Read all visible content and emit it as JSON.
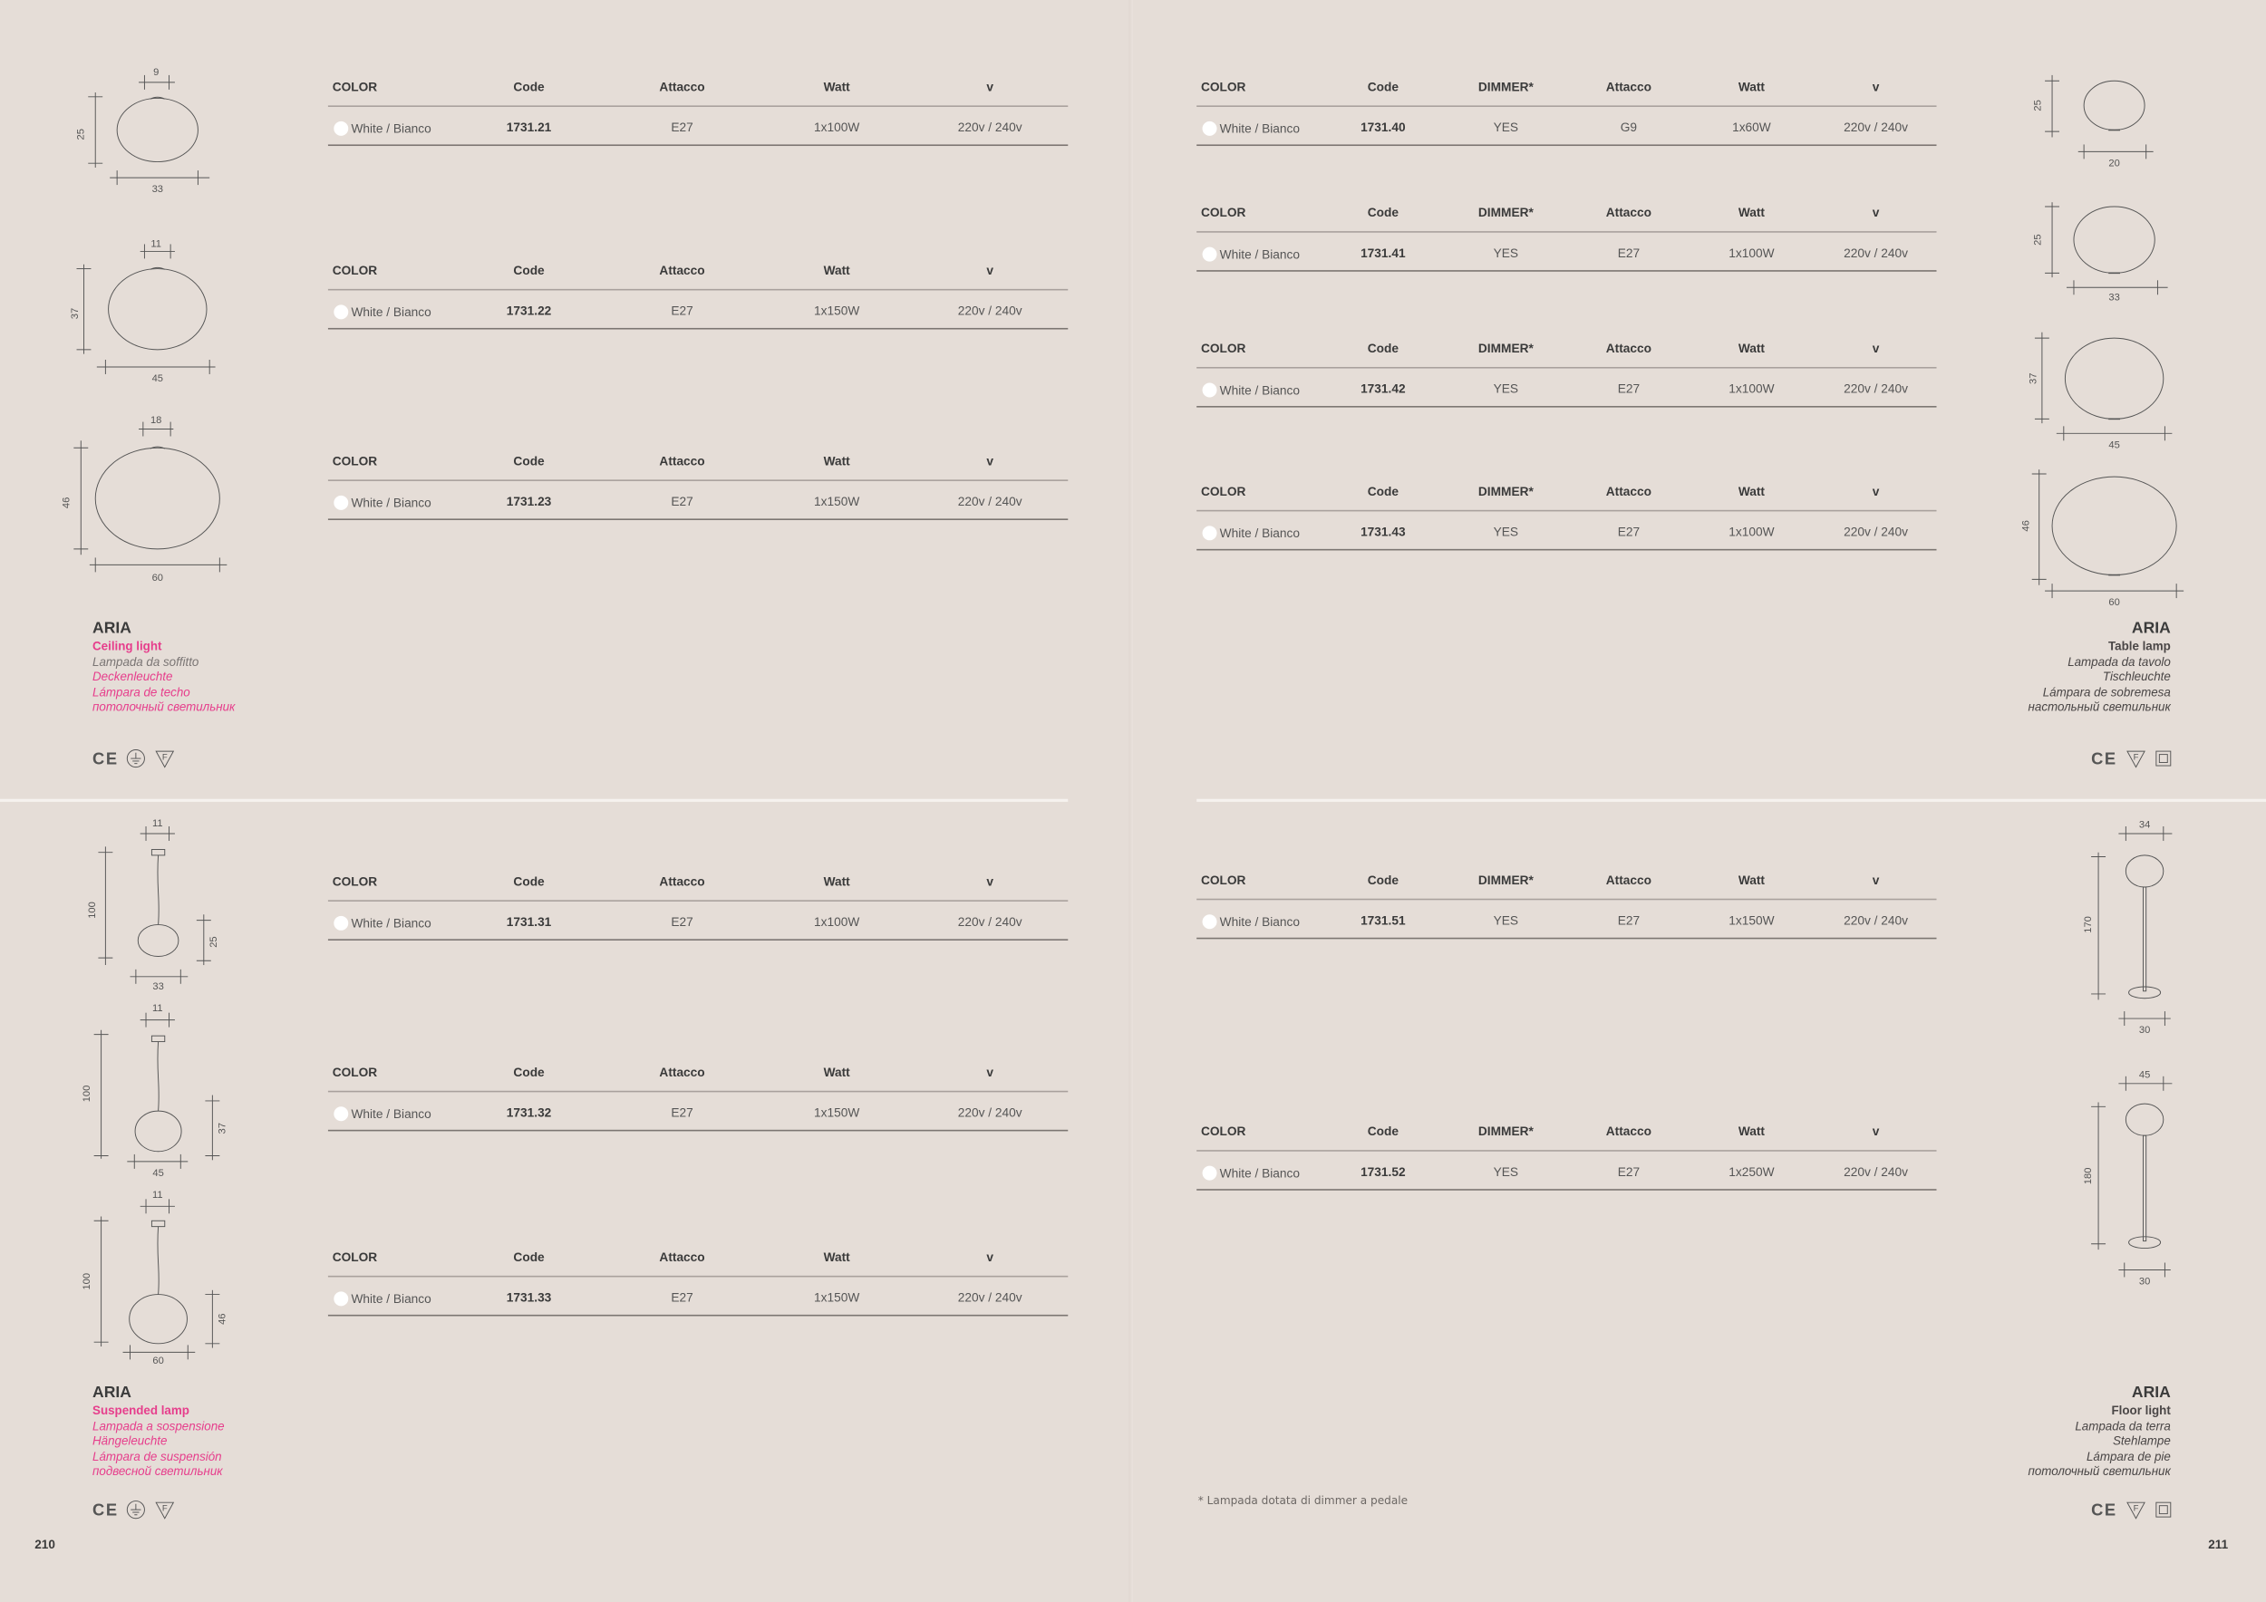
{
  "left_page": {
    "page_number": "210",
    "ceiling": {
      "name": "ARIA",
      "subtitle": "Ceiling light",
      "lines": [
        "Lampada da soffitto",
        "Deckenleuchte",
        "Lámpara de techo",
        "потолочный светильник"
      ],
      "cert_icons": [
        "ce-mark-icon",
        "earth-ground-icon",
        "f-triangle-icon"
      ],
      "tables": [
        {
          "headers": [
            "COLOR",
            "Code",
            "Attacco",
            "Watt",
            "v"
          ],
          "row": {
            "color": "White / Bianco",
            "code": "1731.21",
            "attacco": "E27",
            "watt": "1x100W",
            "v": "220v / 240v"
          }
        },
        {
          "headers": [
            "COLOR",
            "Code",
            "Attacco",
            "Watt",
            "v"
          ],
          "row": {
            "color": "White / Bianco",
            "code": "1731.22",
            "attacco": "E27",
            "watt": "1x150W",
            "v": "220v / 240v"
          }
        },
        {
          "headers": [
            "COLOR",
            "Code",
            "Attacco",
            "Watt",
            "v"
          ],
          "row": {
            "color": "White / Bianco",
            "code": "1731.23",
            "attacco": "E27",
            "watt": "1x150W",
            "v": "220v / 240v"
          }
        }
      ],
      "drawings": [
        {
          "top": "9",
          "height": "25",
          "width": "33"
        },
        {
          "top": "11",
          "height": "37",
          "width": "45"
        },
        {
          "top": "18",
          "height": "46",
          "width": "60"
        }
      ]
    },
    "suspended": {
      "name": "ARIA",
      "subtitle": "Suspended lamp",
      "lines": [
        "Lampada a sospensione",
        "Hängeleuchte",
        "Lámpara de suspensión",
        "подвесной светильник"
      ],
      "cert_icons": [
        "ce-mark-icon",
        "earth-ground-icon",
        "f-triangle-icon"
      ],
      "tables": [
        {
          "headers": [
            "COLOR",
            "Code",
            "Attacco",
            "Watt",
            "v"
          ],
          "row": {
            "color": "White / Bianco",
            "code": "1731.31",
            "attacco": "E27",
            "watt": "1x100W",
            "v": "220v / 240v"
          }
        },
        {
          "headers": [
            "COLOR",
            "Code",
            "Attacco",
            "Watt",
            "v"
          ],
          "row": {
            "color": "White / Bianco",
            "code": "1731.32",
            "attacco": "E27",
            "watt": "1x150W",
            "v": "220v / 240v"
          }
        },
        {
          "headers": [
            "COLOR",
            "Code",
            "Attacco",
            "Watt",
            "v"
          ],
          "row": {
            "color": "White / Bianco",
            "code": "1731.33",
            "attacco": "E27",
            "watt": "1x150W",
            "v": "220v / 240v"
          }
        }
      ],
      "drawings": [
        {
          "top": "11",
          "total": "100",
          "height": "25",
          "width": "33"
        },
        {
          "top": "11",
          "total": "100",
          "height": "37",
          "width": "45"
        },
        {
          "top": "11",
          "total": "100",
          "height": "46",
          "width": "60"
        }
      ]
    }
  },
  "right_page": {
    "page_number": "211",
    "footnote": "* Lampada dotata di dimmer a pedale",
    "table_lamp": {
      "name": "ARIA",
      "subtitle": "Table lamp",
      "lines": [
        "Lampada da tavolo",
        "Tischleuchte",
        "Lámpara de sobremesa",
        "настольный светильник"
      ],
      "cert_icons": [
        "ce-mark-icon",
        "f-triangle-icon",
        "double-insulation-icon"
      ],
      "tables": [
        {
          "headers": [
            "COLOR",
            "Code",
            "DIMMER*",
            "Attacco",
            "Watt",
            "v"
          ],
          "row": {
            "color": "White / Bianco",
            "code": "1731.40",
            "dimmer": "YES",
            "attacco": "G9",
            "watt": "1x60W",
            "v": "220v / 240v"
          }
        },
        {
          "headers": [
            "COLOR",
            "Code",
            "DIMMER*",
            "Attacco",
            "Watt",
            "v"
          ],
          "row": {
            "color": "White / Bianco",
            "code": "1731.41",
            "dimmer": "YES",
            "attacco": "E27",
            "watt": "1x100W",
            "v": "220v / 240v"
          }
        },
        {
          "headers": [
            "COLOR",
            "Code",
            "DIMMER*",
            "Attacco",
            "Watt",
            "v"
          ],
          "row": {
            "color": "White / Bianco",
            "code": "1731.42",
            "dimmer": "YES",
            "attacco": "E27",
            "watt": "1x100W",
            "v": "220v / 240v"
          }
        },
        {
          "headers": [
            "COLOR",
            "Code",
            "DIMMER*",
            "Attacco",
            "Watt",
            "v"
          ],
          "row": {
            "color": "White / Bianco",
            "code": "1731.43",
            "dimmer": "YES",
            "attacco": "E27",
            "watt": "1x100W",
            "v": "220v / 240v"
          }
        }
      ],
      "drawings": [
        {
          "height": "25",
          "width": "20"
        },
        {
          "height": "25",
          "width": "33"
        },
        {
          "height": "37",
          "width": "45"
        },
        {
          "height": "46",
          "width": "60"
        }
      ]
    },
    "floor": {
      "name": "ARIA",
      "subtitle": "Floor light",
      "lines": [
        "Lampada da terra",
        "Stehlampe",
        "Lámpara de pie",
        "потолочный светильник"
      ],
      "cert_icons": [
        "ce-mark-icon",
        "f-triangle-icon",
        "double-insulation-icon"
      ],
      "tables": [
        {
          "headers": [
            "COLOR",
            "Code",
            "DIMMER*",
            "Attacco",
            "Watt",
            "v"
          ],
          "row": {
            "color": "White / Bianco",
            "code": "1731.51",
            "dimmer": "YES",
            "attacco": "E27",
            "watt": "1x150W",
            "v": "220v / 240v"
          }
        },
        {
          "headers": [
            "COLOR",
            "Code",
            "DIMMER*",
            "Attacco",
            "Watt",
            "v"
          ],
          "row": {
            "color": "White / Bianco",
            "code": "1731.52",
            "dimmer": "YES",
            "attacco": "E27",
            "watt": "1x250W",
            "v": "220v / 240v"
          }
        }
      ],
      "drawings": [
        {
          "top": "34",
          "height": "170",
          "base": "30"
        },
        {
          "top": "45",
          "height": "180",
          "base": "30"
        }
      ]
    }
  },
  "colors": {
    "background": "#e5ddd7",
    "accent_pink": "#e63e8c",
    "text_dark": "#3b3b3b",
    "swatch_white": "#ffffff"
  }
}
